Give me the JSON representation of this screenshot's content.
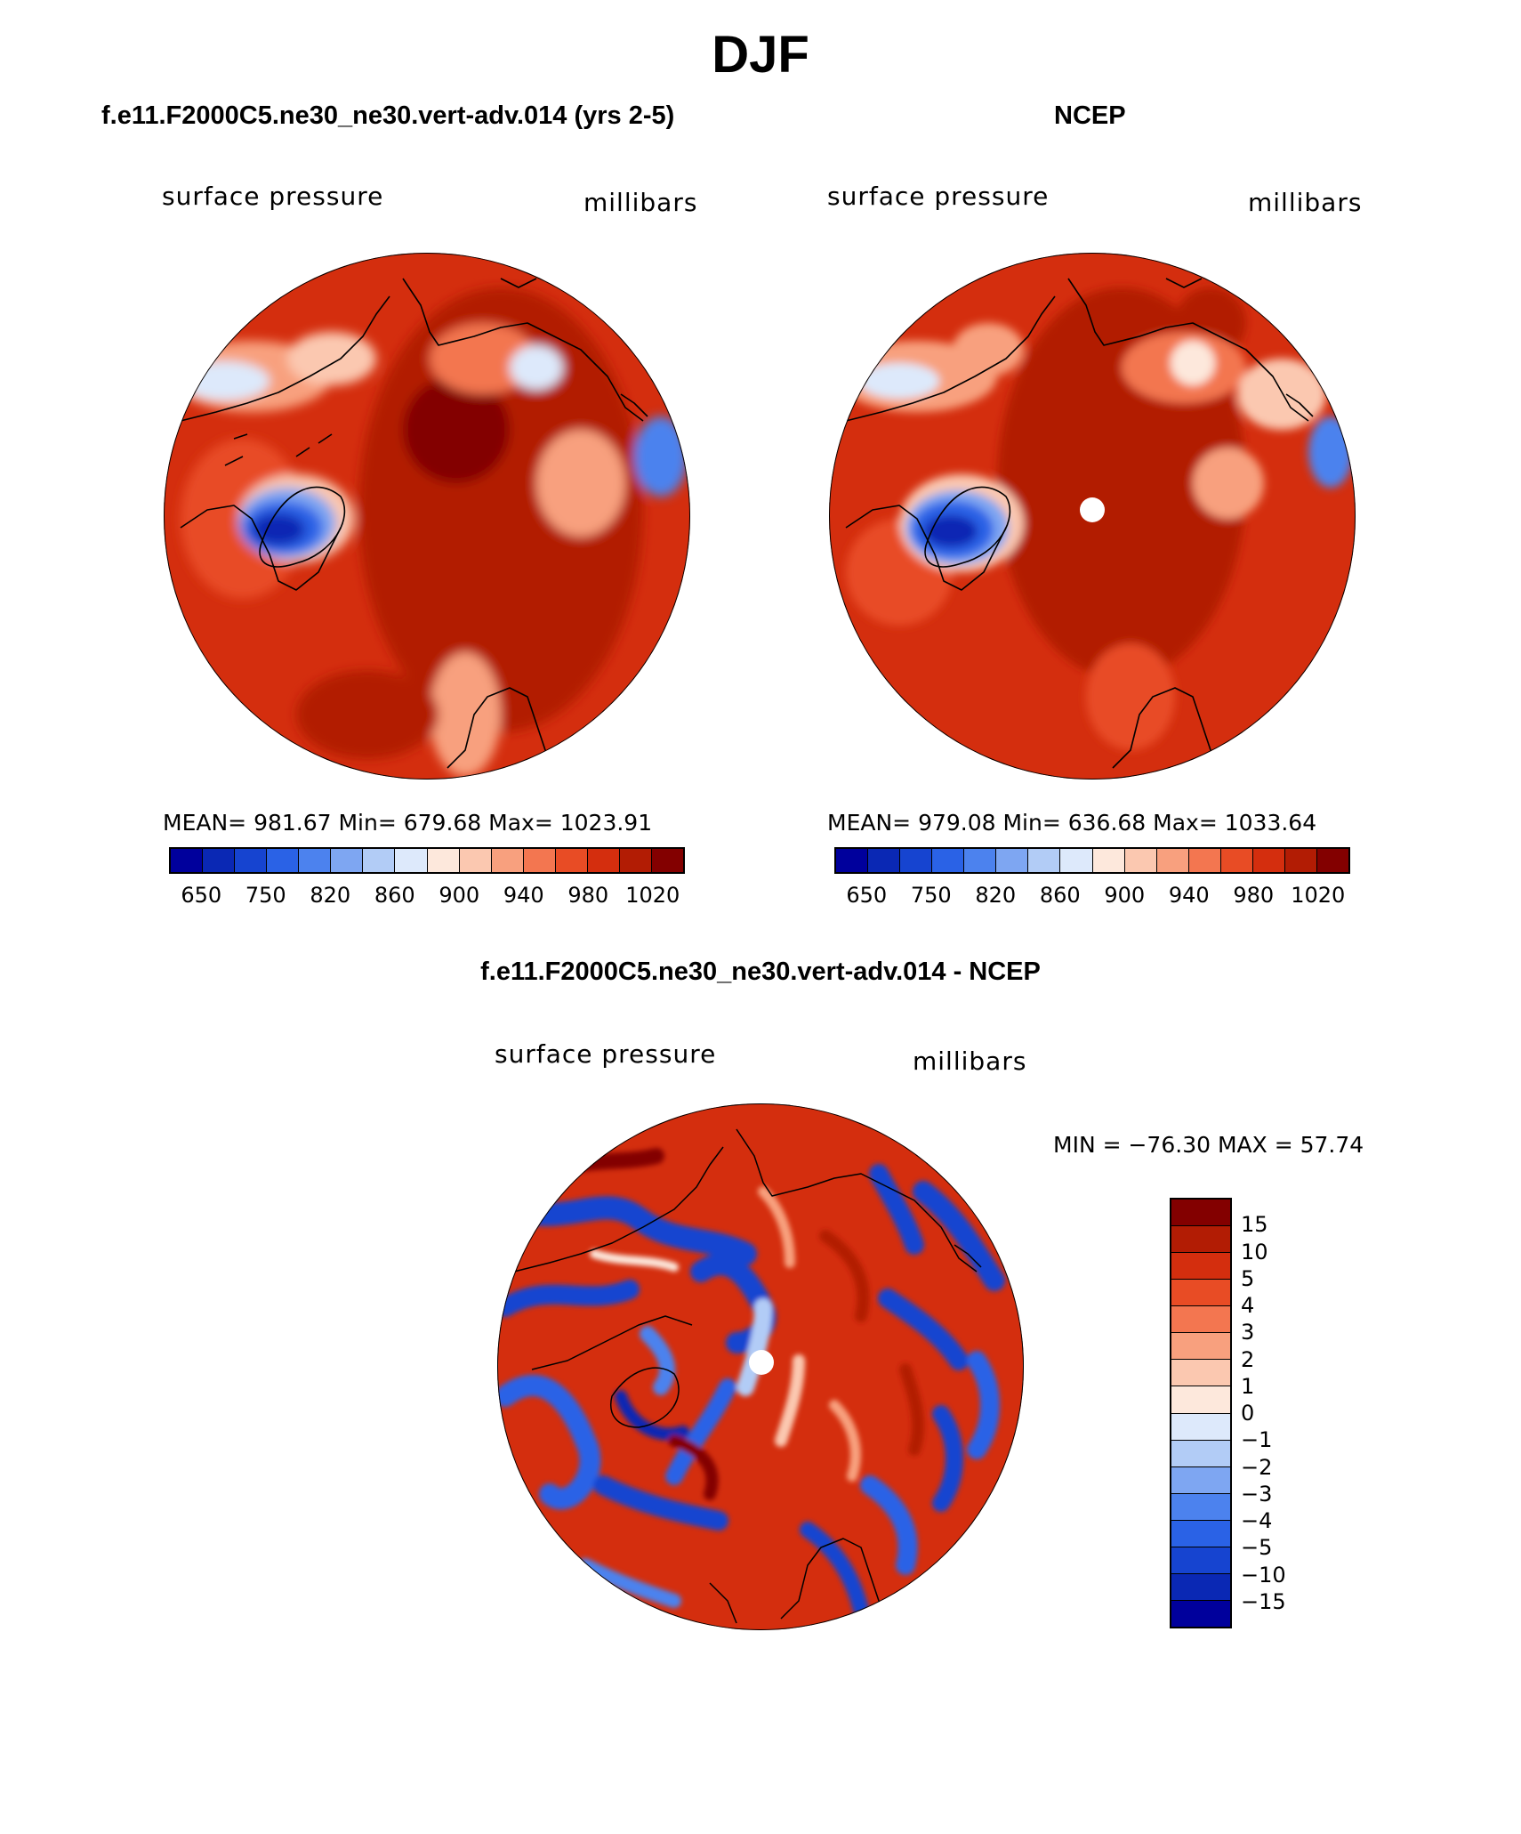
{
  "title": "DJF",
  "panels": {
    "model": {
      "title": "f.e11.F2000C5.ne30_ne30.vert-adv.014 (yrs 2-5)",
      "left_label": "surface pressure",
      "right_label": "millibars",
      "stats": "MEAN= 981.67   Min= 679.68   Max= 1023.91"
    },
    "obs": {
      "title": "NCEP",
      "left_label": "surface pressure",
      "right_label": "millibars",
      "stats": "MEAN= 979.08   Min= 636.68   Max= 1033.64"
    },
    "diff": {
      "title": "f.e11.F2000C5.ne30_ne30.vert-adv.014 - NCEP",
      "left_label": "surface pressure",
      "right_label": "millibars",
      "minmax": "MIN = −76.30 MAX =   57.74"
    }
  },
  "colorbar_main": {
    "ticks": [
      "650",
      "750",
      "820",
      "860",
      "900",
      "940",
      "980",
      "1020"
    ],
    "colors": [
      "#00009c",
      "#0a28b4",
      "#1644d0",
      "#2a62e6",
      "#4c82ee",
      "#7ea6f2",
      "#b2ccf6",
      "#dde9fb",
      "#fde8dc",
      "#fbc8b0",
      "#f8a07e",
      "#f37650",
      "#e84c25",
      "#d42e0e",
      "#b21c04",
      "#830000"
    ]
  },
  "colorbar_diff": {
    "ticks": [
      "15",
      "10",
      "5",
      "4",
      "3",
      "2",
      "1",
      "0",
      "−1",
      "−2",
      "−3",
      "−4",
      "−5",
      "−10",
      "−15"
    ],
    "colors": [
      "#830000",
      "#b21c04",
      "#d42e0e",
      "#e84c25",
      "#f37650",
      "#f8a07e",
      "#fbc8b0",
      "#fde8dc",
      "#dde9fb",
      "#b2ccf6",
      "#7ea6f2",
      "#4c82ee",
      "#2a62e6",
      "#1644d0",
      "#0a28b4",
      "#00009c"
    ]
  }
}
